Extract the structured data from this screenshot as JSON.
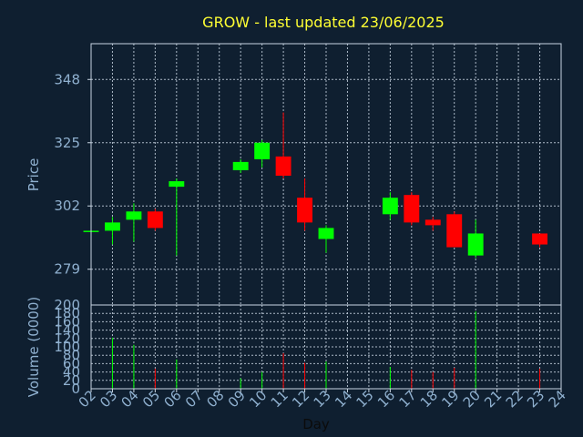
{
  "title": "GROW - last updated 23/06/2025",
  "colors": {
    "background": "#0f1f30",
    "up": "#00ff00",
    "down": "#ff0000",
    "title": "#ffff33",
    "axis_text": "#8fb0cf",
    "grid": "#c9d6e3"
  },
  "chart_data": [
    {
      "type": "candlestick",
      "ylabel": "Price",
      "yticks": [
        279,
        302,
        325,
        348
      ],
      "ylim": [
        266,
        361
      ],
      "grid": true,
      "candles": [
        {
          "day": "02",
          "open": 293,
          "close": 293,
          "high": 293,
          "low": 293
        },
        {
          "day": "03",
          "open": 293,
          "close": 296,
          "high": 298,
          "low": 288
        },
        {
          "day": "04",
          "open": 297,
          "close": 300,
          "high": 303,
          "low": 289
        },
        {
          "day": "05",
          "open": 300,
          "close": 294,
          "high": 301,
          "low": 293
        },
        {
          "day": "06",
          "open": 309,
          "close": 311,
          "high": 312,
          "low": 284
        },
        {
          "day": "09",
          "open": 315,
          "close": 318,
          "high": 319,
          "low": 314
        },
        {
          "day": "10",
          "open": 319,
          "close": 325,
          "high": 326,
          "low": 316
        },
        {
          "day": "11",
          "open": 320,
          "close": 313,
          "high": 336,
          "low": 312
        },
        {
          "day": "12",
          "open": 305,
          "close": 296,
          "high": 312,
          "low": 293
        },
        {
          "day": "13",
          "open": 290,
          "close": 294,
          "high": 295,
          "low": 285
        },
        {
          "day": "16",
          "open": 299,
          "close": 305,
          "high": 307,
          "low": 297
        },
        {
          "day": "17",
          "open": 306,
          "close": 296,
          "high": 307,
          "low": 295
        },
        {
          "day": "18",
          "open": 297,
          "close": 295,
          "high": 298,
          "low": 293
        },
        {
          "day": "19",
          "open": 299,
          "close": 287,
          "high": 300,
          "low": 287
        },
        {
          "day": "20",
          "open": 284,
          "close": 292,
          "high": 297,
          "low": 283
        },
        {
          "day": "23",
          "open": 292,
          "close": 288,
          "high": 292,
          "low": 287
        }
      ]
    },
    {
      "type": "bar",
      "ylabel": "Volume (0000)",
      "yticks": [
        0,
        20,
        40,
        60,
        80,
        100,
        120,
        140,
        160,
        180,
        200
      ],
      "ylim": [
        0,
        200
      ],
      "xlabel": "Day",
      "xticks": [
        "02",
        "03",
        "04",
        "05",
        "06",
        "07",
        "08",
        "09",
        "10",
        "11",
        "12",
        "13",
        "14",
        "15",
        "16",
        "17",
        "18",
        "19",
        "20",
        "21",
        "22",
        "23",
        "24"
      ],
      "grid": true,
      "bars": [
        {
          "day": "03",
          "value": 122,
          "dir": "up"
        },
        {
          "day": "04",
          "value": 105,
          "dir": "up"
        },
        {
          "day": "05",
          "value": 48,
          "dir": "down"
        },
        {
          "day": "06",
          "value": 70,
          "dir": "up"
        },
        {
          "day": "09",
          "value": 25,
          "dir": "up"
        },
        {
          "day": "10",
          "value": 40,
          "dir": "up"
        },
        {
          "day": "11",
          "value": 85,
          "dir": "down"
        },
        {
          "day": "12",
          "value": 62,
          "dir": "down"
        },
        {
          "day": "13",
          "value": 65,
          "dir": "up"
        },
        {
          "day": "16",
          "value": 52,
          "dir": "up"
        },
        {
          "day": "17",
          "value": 45,
          "dir": "down"
        },
        {
          "day": "18",
          "value": 40,
          "dir": "down"
        },
        {
          "day": "19",
          "value": 50,
          "dir": "down"
        },
        {
          "day": "20",
          "value": 185,
          "dir": "up"
        },
        {
          "day": "23",
          "value": 48,
          "dir": "down"
        }
      ]
    }
  ]
}
